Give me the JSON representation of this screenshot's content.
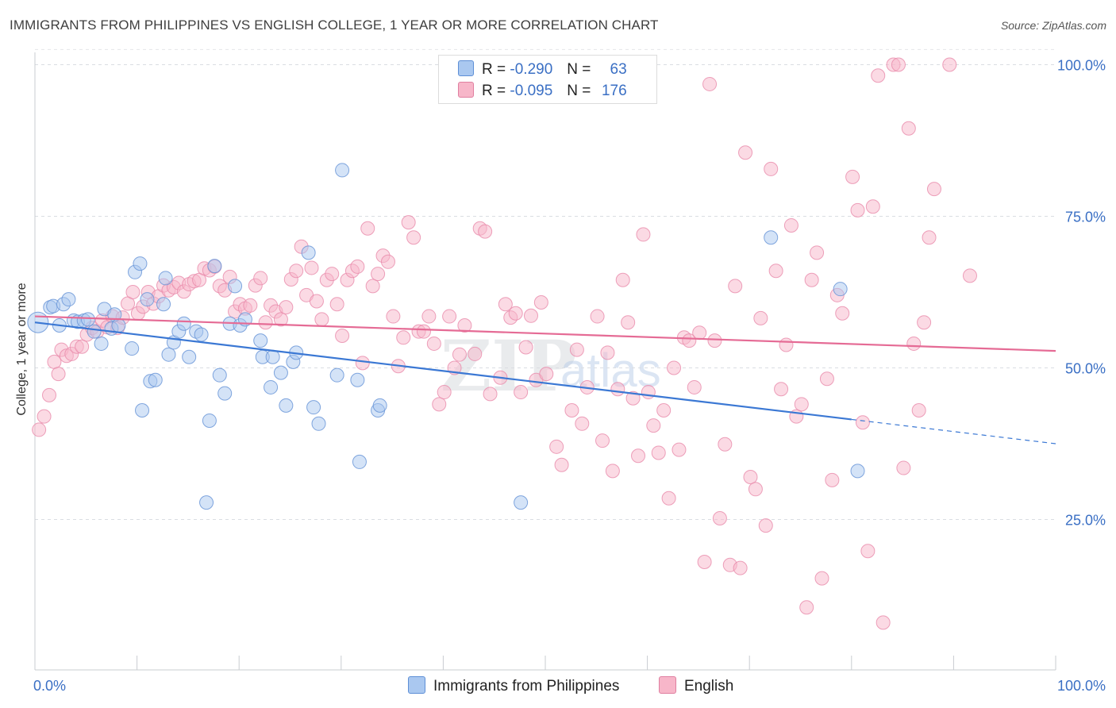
{
  "header": {
    "title": "IMMIGRANTS FROM PHILIPPINES VS ENGLISH COLLEGE, 1 YEAR OR MORE CORRELATION CHART",
    "source": "Source: ZipAtlas.com"
  },
  "watermark": {
    "zip": "ZIP",
    "atlas": "atlas"
  },
  "legend": {
    "r_label": "R =",
    "n_label": "N =",
    "series": [
      {
        "name": "Immigrants from Philippines",
        "r": "-0.290",
        "n": "63",
        "fill": "#aac8f0",
        "stroke": "#5e8fd6"
      },
      {
        "name": "English",
        "r": "-0.095",
        "n": "176",
        "fill": "#f7b6c9",
        "stroke": "#e07fa0"
      }
    ]
  },
  "chart_data": {
    "type": "scatter",
    "title": "IMMIGRANTS FROM PHILIPPINES VS ENGLISH COLLEGE, 1 YEAR OR MORE CORRELATION CHART",
    "xlabel": "",
    "ylabel": "College, 1 year or more",
    "xlim": [
      0,
      100
    ],
    "ylim": [
      0,
      103
    ],
    "x_tick_labels": [
      "0.0%",
      "100.0%"
    ],
    "y_ticks": [
      25,
      50,
      75,
      100
    ],
    "y_tick_labels": [
      "25.0%",
      "50.0%",
      "75.0%",
      "100.0%"
    ],
    "grid": "dashed horizontal",
    "legend_position": "top-center",
    "colors": {
      "blue_line": "#3b78d4",
      "pink_line": "#e56b95",
      "blue_fill": "#aac8f0",
      "pink_fill": "#f7b6c9",
      "axis_labels": "#3a6fc4"
    },
    "trendlines": [
      {
        "series": "Immigrants from Philippines",
        "x": [
          0,
          80
        ],
        "y": [
          57.5,
          41.5
        ],
        "dashed_extension": {
          "x": [
            80,
            100
          ],
          "y": [
            41.5,
            37.5
          ]
        }
      },
      {
        "series": "English",
        "x": [
          0,
          100
        ],
        "y": [
          58.5,
          52.8
        ]
      }
    ],
    "series": [
      {
        "name": "Immigrants from Philippines",
        "points": [
          [
            0.3,
            57.5
          ],
          [
            1.5,
            60
          ],
          [
            1.8,
            60.2
          ],
          [
            2.4,
            57
          ],
          [
            2.8,
            60.5
          ],
          [
            3.3,
            61.3
          ],
          [
            3.8,
            57.8
          ],
          [
            4.2,
            57.6
          ],
          [
            4.8,
            57.8
          ],
          [
            5.2,
            58
          ],
          [
            5.8,
            56
          ],
          [
            6.5,
            54
          ],
          [
            6.8,
            59.7
          ],
          [
            7.5,
            56.5
          ],
          [
            7.8,
            58.8
          ],
          [
            8.2,
            57
          ],
          [
            9.5,
            53.2
          ],
          [
            9.8,
            65.8
          ],
          [
            10.3,
            67.2
          ],
          [
            10.5,
            43
          ],
          [
            11.0,
            61.3
          ],
          [
            11.3,
            47.8
          ],
          [
            11.8,
            48
          ],
          [
            12.6,
            60.5
          ],
          [
            12.8,
            64.8
          ],
          [
            13.1,
            52.2
          ],
          [
            13.6,
            54.2
          ],
          [
            14.1,
            56
          ],
          [
            14.6,
            57.3
          ],
          [
            15.1,
            51.8
          ],
          [
            15.8,
            56
          ],
          [
            16.3,
            55.5
          ],
          [
            16.8,
            27.8
          ],
          [
            17.1,
            41.3
          ],
          [
            17.6,
            66.8
          ],
          [
            18.1,
            48.8
          ],
          [
            18.6,
            45.8
          ],
          [
            19.1,
            57.3
          ],
          [
            19.6,
            63.5
          ],
          [
            20.1,
            57
          ],
          [
            20.6,
            58
          ],
          [
            22.1,
            54.5
          ],
          [
            22.3,
            51.8
          ],
          [
            23.1,
            46.8
          ],
          [
            23.3,
            51.8
          ],
          [
            24.1,
            49.2
          ],
          [
            24.6,
            43.8
          ],
          [
            25.3,
            51
          ],
          [
            25.6,
            52.5
          ],
          [
            26.8,
            69
          ],
          [
            27.3,
            43.5
          ],
          [
            27.8,
            40.8
          ],
          [
            29.6,
            48.8
          ],
          [
            30.1,
            82.6
          ],
          [
            31.6,
            48
          ],
          [
            31.8,
            34.5
          ],
          [
            33.6,
            43
          ],
          [
            33.8,
            43.8
          ],
          [
            47.6,
            27.8
          ],
          [
            72.1,
            71.5
          ],
          [
            78.9,
            63
          ],
          [
            80.6,
            33
          ]
        ]
      },
      {
        "name": "English",
        "points": [
          [
            0.4,
            39.8
          ],
          [
            0.9,
            42
          ],
          [
            1.4,
            45.5
          ],
          [
            1.9,
            51
          ],
          [
            2.3,
            49
          ],
          [
            2.6,
            53
          ],
          [
            3.1,
            52
          ],
          [
            3.6,
            52.3
          ],
          [
            4.1,
            53.5
          ],
          [
            4.6,
            53.5
          ],
          [
            5.1,
            55.5
          ],
          [
            5.6,
            56.6
          ],
          [
            6.1,
            56
          ],
          [
            6.6,
            57.8
          ],
          [
            7.1,
            56.7
          ],
          [
            7.6,
            58.5
          ],
          [
            8.1,
            56.6
          ],
          [
            8.6,
            58.3
          ],
          [
            9.1,
            60.6
          ],
          [
            9.6,
            62.5
          ],
          [
            10.1,
            59
          ],
          [
            10.6,
            60.1
          ],
          [
            11.1,
            62.5
          ],
          [
            11.6,
            60.6
          ],
          [
            12.1,
            61.8
          ],
          [
            12.6,
            63.6
          ],
          [
            13.1,
            62.8
          ],
          [
            13.6,
            63.3
          ],
          [
            14.1,
            64
          ],
          [
            14.6,
            62.6
          ],
          [
            15.1,
            63.8
          ],
          [
            15.6,
            64.3
          ],
          [
            16.1,
            64.5
          ],
          [
            16.6,
            66.4
          ],
          [
            17.1,
            66.1
          ],
          [
            17.6,
            66.7
          ],
          [
            18.1,
            63.5
          ],
          [
            18.6,
            62.8
          ],
          [
            19.1,
            65
          ],
          [
            19.6,
            59.3
          ],
          [
            20.1,
            60.5
          ],
          [
            20.6,
            59.8
          ],
          [
            21.1,
            60.3
          ],
          [
            21.6,
            63.6
          ],
          [
            22.1,
            64.8
          ],
          [
            22.6,
            57.5
          ],
          [
            23.1,
            60.3
          ],
          [
            23.6,
            59.3
          ],
          [
            24.1,
            58
          ],
          [
            24.6,
            60
          ],
          [
            25.1,
            64.6
          ],
          [
            25.6,
            66
          ],
          [
            26.1,
            70
          ],
          [
            26.6,
            62
          ],
          [
            27.1,
            66.5
          ],
          [
            27.6,
            61
          ],
          [
            28.1,
            58
          ],
          [
            28.6,
            64.5
          ],
          [
            29.1,
            65.5
          ],
          [
            29.6,
            60.5
          ],
          [
            30.1,
            55.3
          ],
          [
            30.6,
            64.5
          ],
          [
            31.1,
            66
          ],
          [
            31.6,
            66.7
          ],
          [
            32.1,
            50.8
          ],
          [
            32.6,
            73
          ],
          [
            33.1,
            63.5
          ],
          [
            33.6,
            65.5
          ],
          [
            34.1,
            68.5
          ],
          [
            34.6,
            67.5
          ],
          [
            35.1,
            58.5
          ],
          [
            35.6,
            50.3
          ],
          [
            36.1,
            55
          ],
          [
            36.6,
            74
          ],
          [
            37.1,
            71.5
          ],
          [
            37.6,
            56
          ],
          [
            38.1,
            56
          ],
          [
            38.6,
            58.5
          ],
          [
            39.1,
            54
          ],
          [
            39.6,
            44
          ],
          [
            40.1,
            46
          ],
          [
            40.6,
            58.5
          ],
          [
            41.1,
            50
          ],
          [
            41.6,
            52.2
          ],
          [
            42.1,
            57
          ],
          [
            43.1,
            52.3
          ],
          [
            43.6,
            73
          ],
          [
            44.1,
            72.5
          ],
          [
            44.6,
            45.7
          ],
          [
            45.6,
            48.4
          ],
          [
            46.1,
            60.5
          ],
          [
            46.6,
            58.3
          ],
          [
            47.1,
            59
          ],
          [
            47.6,
            46
          ],
          [
            48.1,
            53.4
          ],
          [
            48.6,
            58.6
          ],
          [
            49.1,
            48
          ],
          [
            49.6,
            60.8
          ],
          [
            50.1,
            49
          ],
          [
            51.1,
            37
          ],
          [
            51.6,
            34
          ],
          [
            52.6,
            43
          ],
          [
            53.1,
            53
          ],
          [
            53.6,
            40.8
          ],
          [
            54.1,
            46.8
          ],
          [
            55.1,
            58.5
          ],
          [
            55.6,
            38
          ],
          [
            56.1,
            52.5
          ],
          [
            56.6,
            33
          ],
          [
            57.1,
            46.5
          ],
          [
            57.6,
            64.5
          ],
          [
            58.1,
            57.5
          ],
          [
            58.6,
            45
          ],
          [
            59.1,
            35.5
          ],
          [
            59.6,
            72
          ],
          [
            60.1,
            46
          ],
          [
            60.6,
            40.5
          ],
          [
            61.1,
            36
          ],
          [
            61.6,
            43
          ],
          [
            62.1,
            28.5
          ],
          [
            62.6,
            50
          ],
          [
            63.1,
            36.5
          ],
          [
            63.6,
            55
          ],
          [
            64.1,
            54.5
          ],
          [
            64.6,
            46.8
          ],
          [
            65.1,
            55.8
          ],
          [
            65.6,
            18
          ],
          [
            66.1,
            96.8
          ],
          [
            66.6,
            54.5
          ],
          [
            67.1,
            25.2
          ],
          [
            67.6,
            37.4
          ],
          [
            68.1,
            17.5
          ],
          [
            68.6,
            63.5
          ],
          [
            69.1,
            17
          ],
          [
            69.6,
            85.5
          ],
          [
            70.1,
            32
          ],
          [
            70.6,
            30
          ],
          [
            71.1,
            58.2
          ],
          [
            71.6,
            24
          ],
          [
            72.1,
            82.8
          ],
          [
            72.6,
            66
          ],
          [
            73.1,
            46.5
          ],
          [
            73.6,
            53.8
          ],
          [
            74.1,
            73.5
          ],
          [
            74.6,
            42
          ],
          [
            75.1,
            44
          ],
          [
            75.6,
            10.5
          ],
          [
            76.1,
            64.5
          ],
          [
            76.6,
            69
          ],
          [
            77.1,
            15.3
          ],
          [
            77.6,
            48.2
          ],
          [
            78.1,
            31.5
          ],
          [
            78.6,
            62
          ],
          [
            79.1,
            59
          ],
          [
            80.1,
            81.5
          ],
          [
            80.6,
            76
          ],
          [
            81.1,
            41
          ],
          [
            81.6,
            19.8
          ],
          [
            82.1,
            76.6
          ],
          [
            82.6,
            98.2
          ],
          [
            83.1,
            8
          ],
          [
            84.1,
            100
          ],
          [
            84.6,
            100
          ],
          [
            85.1,
            33.5
          ],
          [
            85.6,
            89.5
          ],
          [
            86.1,
            54
          ],
          [
            86.6,
            43
          ],
          [
            87.1,
            57.5
          ],
          [
            87.6,
            71.5
          ],
          [
            88.1,
            79.5
          ],
          [
            89.6,
            100
          ],
          [
            91.6,
            65.2
          ]
        ]
      }
    ]
  }
}
